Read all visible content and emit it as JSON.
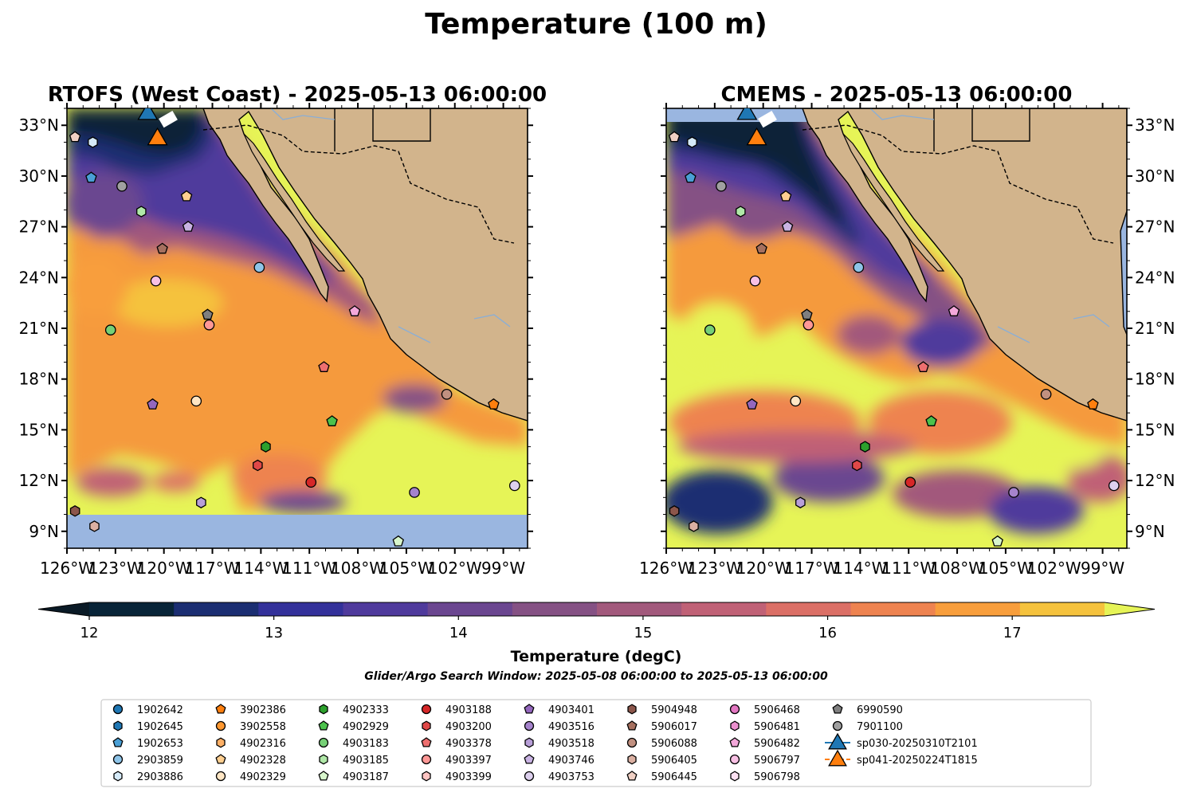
{
  "figure": {
    "title": "Temperature (100 m)"
  },
  "chart_data": [
    {
      "type": "heatmap",
      "title": "RTOFS (West Coast) - 2025-05-13 06:00:00",
      "xlim": [
        -126,
        -97.5
      ],
      "ylim": [
        8,
        34
      ],
      "x_ticks": [
        "126°W",
        "123°W",
        "120°W",
        "117°W",
        "114°W",
        "111°W",
        "108°W",
        "105°W",
        "102°W",
        "99°W"
      ],
      "y_ticks": [
        "33°N",
        "30°N",
        "27°N",
        "24°N",
        "21°N",
        "18°N",
        "15°N",
        "12°N",
        "9°N"
      ],
      "no_data_below_lat": 10.1
    },
    {
      "type": "heatmap",
      "title": "CMEMS - 2025-05-13 06:00:00",
      "xlim": [
        -126,
        -97.5
      ],
      "ylim": [
        8,
        34
      ],
      "x_ticks": [
        "126°W",
        "123°W",
        "120°W",
        "117°W",
        "114°W",
        "111°W",
        "108°W",
        "105°W",
        "102°W",
        "99°W"
      ],
      "y_ticks": [
        "33°N",
        "30°N",
        "27°N",
        "24°N",
        "21°N",
        "18°N",
        "15°N",
        "12°N",
        "9°N"
      ]
    }
  ],
  "colorbar": {
    "label": "Temperature (degC)",
    "min": 12,
    "max": 17.5,
    "step": 0.5,
    "ticks": [
      "12",
      "13",
      "14",
      "15",
      "16",
      "17"
    ],
    "colors": [
      "#082438",
      "#1b2e72",
      "#33319a",
      "#4f3a9c",
      "#6b4690",
      "#855184",
      "#a2597c",
      "#c06176",
      "#db6f66",
      "#ee8350",
      "#f89e3c",
      "#f5c23d"
    ],
    "under_color": "#0a1a26",
    "over_color": "#e6f457",
    "land_color": "#d2b48c",
    "ocean_color": "#9ab6e0"
  },
  "search_window": "Glider/Argo Search Window: 2025-05-08 06:00:00 to 2025-05-13 06:00:00",
  "floats": [
    {
      "id": "1902642",
      "marker": "circle",
      "color": "#1f77b4"
    },
    {
      "id": "1902645",
      "marker": "hexagon",
      "color": "#1f77b4"
    },
    {
      "id": "1902653",
      "marker": "pentagon",
      "color": "#4a9fd5",
      "lon": -124.5,
      "lat": 29.9
    },
    {
      "id": "2903859",
      "marker": "circle",
      "color": "#8ec4e8",
      "lon": -114.1,
      "lat": 24.6
    },
    {
      "id": "2903886",
      "marker": "hexagon",
      "color": "#d5eaf8",
      "lon": -124.4,
      "lat": 32.0
    },
    {
      "id": "3902386",
      "marker": "pentagon",
      "color": "#ff7f0e",
      "lon": -99.6,
      "lat": 16.5
    },
    {
      "id": "3902558",
      "marker": "circle",
      "color": "#ff9830"
    },
    {
      "id": "4902316",
      "marker": "hexagon",
      "color": "#ffb066"
    },
    {
      "id": "4902328",
      "marker": "pentagon",
      "color": "#ffcf90",
      "lon": -118.6,
      "lat": 28.8
    },
    {
      "id": "4902329",
      "marker": "circle",
      "color": "#ffe6c4",
      "lon": -118.0,
      "lat": 16.7
    },
    {
      "id": "4902333",
      "marker": "hexagon",
      "color": "#2ca02c",
      "lon": -113.7,
      "lat": 14.0
    },
    {
      "id": "4902929",
      "marker": "pentagon",
      "color": "#4cc24c",
      "lon": -109.6,
      "lat": 15.5
    },
    {
      "id": "4903183",
      "marker": "circle",
      "color": "#76d076",
      "lon": -123.3,
      "lat": 20.9
    },
    {
      "id": "4903185",
      "marker": "hexagon",
      "color": "#b0e8a8",
      "lon": -121.4,
      "lat": 27.9
    },
    {
      "id": "4903187",
      "marker": "pentagon",
      "color": "#d8f6cc",
      "lon": -105.5,
      "lat": 8.4
    },
    {
      "id": "4903188",
      "marker": "circle",
      "color": "#d62728",
      "lon": -110.9,
      "lat": 11.9
    },
    {
      "id": "4903200",
      "marker": "hexagon",
      "color": "#e04848",
      "lon": -114.2,
      "lat": 12.9
    },
    {
      "id": "4903378",
      "marker": "pentagon",
      "color": "#ee6f6f",
      "lon": -110.1,
      "lat": 18.7
    },
    {
      "id": "4903397",
      "marker": "circle",
      "color": "#ff9896",
      "lon": -117.2,
      "lat": 21.2
    },
    {
      "id": "4903399",
      "marker": "hexagon",
      "color": "#ffc4c2"
    },
    {
      "id": "4903401",
      "marker": "pentagon",
      "color": "#9467bd",
      "lon": -120.7,
      "lat": 16.5
    },
    {
      "id": "4903516",
      "marker": "circle",
      "color": "#a583cc",
      "lon": -104.5,
      "lat": 11.3
    },
    {
      "id": "4903518",
      "marker": "hexagon",
      "color": "#b89fd8",
      "lon": -117.7,
      "lat": 10.7
    },
    {
      "id": "4903746",
      "marker": "pentagon",
      "color": "#c9b3e3",
      "lon": -118.5,
      "lat": 27.0
    },
    {
      "id": "4903753",
      "marker": "circle",
      "color": "#ddd0ee",
      "lon": -98.3,
      "lat": 11.7
    },
    {
      "id": "5904948",
      "marker": "hexagon",
      "color": "#8c564b",
      "lon": -125.5,
      "lat": 10.2
    },
    {
      "id": "5906017",
      "marker": "pentagon",
      "color": "#a6705f",
      "lon": -120.1,
      "lat": 25.7
    },
    {
      "id": "5906088",
      "marker": "circle",
      "color": "#c19080",
      "lon": -102.5,
      "lat": 17.1
    },
    {
      "id": "5906405",
      "marker": "hexagon",
      "color": "#dbb0a2",
      "lon": -124.3,
      "lat": 9.3
    },
    {
      "id": "5906445",
      "marker": "pentagon",
      "color": "#f0d0c4",
      "lon": -125.5,
      "lat": 32.3
    },
    {
      "id": "5906468",
      "marker": "circle",
      "color": "#e377c2"
    },
    {
      "id": "5906481",
      "marker": "hexagon",
      "color": "#eb8fce"
    },
    {
      "id": "5906482",
      "marker": "pentagon",
      "color": "#f3a8da",
      "lon": -108.2,
      "lat": 22.0
    },
    {
      "id": "5906797",
      "marker": "circle",
      "color": "#f8c0e4",
      "lon": -120.5,
      "lat": 23.8
    },
    {
      "id": "5906798",
      "marker": "hexagon",
      "color": "#fde0f2"
    },
    {
      "id": "6990590",
      "marker": "pentagon",
      "color": "#7f7f7f",
      "lon": -117.3,
      "lat": 21.8
    },
    {
      "id": "7901100",
      "marker": "circle",
      "color": "#a0a0a0",
      "lon": -122.6,
      "lat": 29.4
    }
  ],
  "gliders": [
    {
      "id": "sp030-20250310T2101",
      "marker": "triangle",
      "color": "#1f77b4",
      "lon": -121.0,
      "lat": 33.8
    },
    {
      "id": "sp041-20250224T1815",
      "marker": "triangle",
      "color": "#ff7f0e",
      "lon": -120.4,
      "lat": 32.3
    }
  ]
}
